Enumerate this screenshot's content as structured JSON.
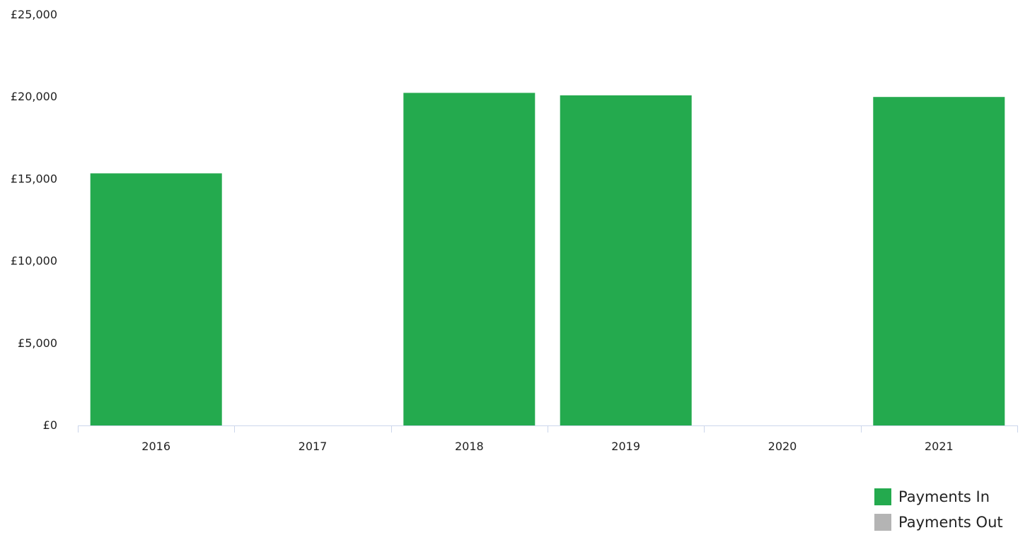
{
  "chart_data": {
    "type": "bar",
    "categories": [
      "2016",
      "2017",
      "2018",
      "2019",
      "2020",
      "2021"
    ],
    "series": [
      {
        "name": "Payments In",
        "color": "#24aa4e",
        "values": [
          15350,
          0,
          20250,
          20100,
          0,
          20000
        ]
      },
      {
        "name": "Payments Out",
        "color": "#b4b4b4",
        "values": [
          0,
          0,
          0,
          0,
          0,
          0
        ]
      }
    ],
    "ylim": [
      0,
      25000
    ],
    "yticks": [
      0,
      5000,
      10000,
      15000,
      20000,
      25000
    ],
    "ytick_labels": [
      "£0",
      "£5,000",
      "£10,000",
      "£15,000",
      "£20,000",
      "£25,000"
    ],
    "grid": false,
    "legend": "bottom-right"
  }
}
